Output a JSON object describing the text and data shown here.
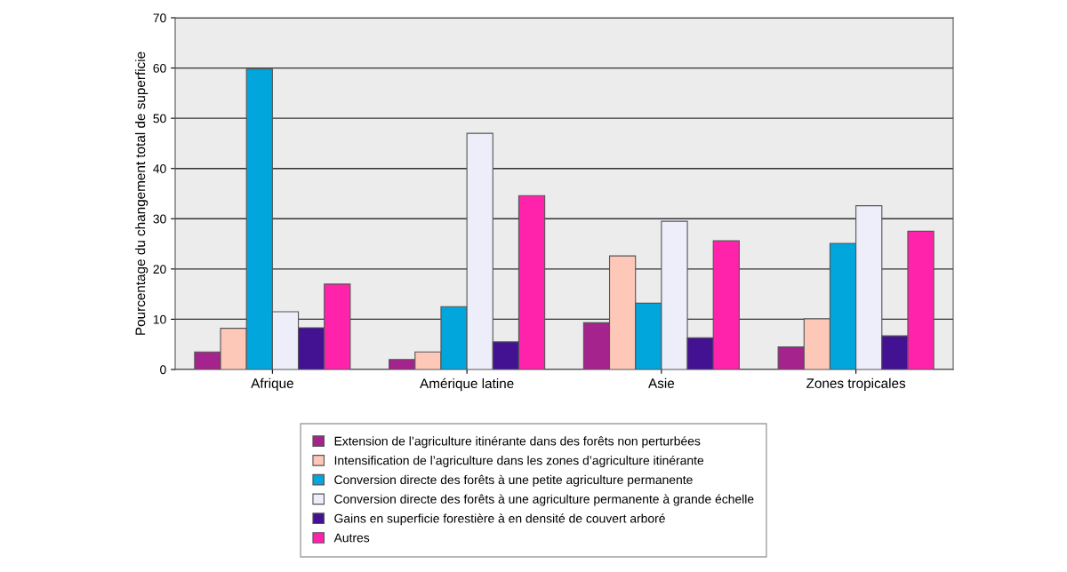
{
  "chart_data": {
    "type": "bar",
    "ylabel": "Pourcentage du changement total de superficie",
    "categories": [
      "Afrique",
      "Amérique latine",
      "Asie",
      "Zones tropicales"
    ],
    "series": [
      {
        "name": "Extension de l’agriculture itinérante dans des forêts non perturbées",
        "color": "#a4238c",
        "values": [
          3.5,
          2.0,
          9.3,
          4.5
        ]
      },
      {
        "name": "Intensification de l’agriculture dans les zones d’agriculture itinérante",
        "color": "#fdc8b8",
        "values": [
          8.2,
          3.5,
          22.6,
          10.1
        ]
      },
      {
        "name": "Conversion directe des forêts à une petite agriculture permanente",
        "color": "#00a6dc",
        "values": [
          59.8,
          12.5,
          13.2,
          25.1
        ]
      },
      {
        "name": "Conversion directe des forêts à une agriculture permanente à grande échelle",
        "color": "#eeeefa",
        "values": [
          11.5,
          47.0,
          29.5,
          32.6
        ]
      },
      {
        "name": "Gains en superficie forestière à en densité de couvert arboré",
        "color": "#421293",
        "values": [
          8.3,
          5.5,
          6.3,
          6.7
        ]
      },
      {
        "name": "Autres",
        "color": "#ff22aa",
        "values": [
          17.0,
          34.6,
          25.6,
          27.5
        ]
      }
    ],
    "ylim": [
      0,
      70
    ],
    "yticks": [
      0,
      10,
      20,
      30,
      40,
      50,
      60,
      70
    ],
    "grid": "y",
    "legend": "bottom"
  }
}
